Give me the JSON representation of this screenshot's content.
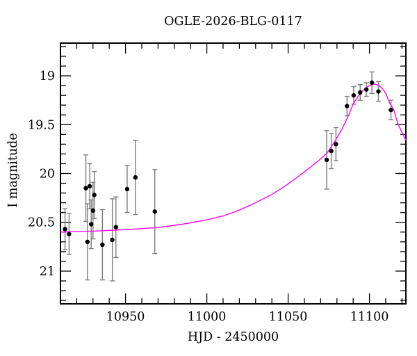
{
  "window": {
    "background": "#ffffff"
  },
  "chart_data": {
    "type": "scatter",
    "title": "OGLE-2026-BLG-0117",
    "xlabel": "HJD - 2450000",
    "ylabel": "I magnitude",
    "frame_color": "#000000",
    "background_color": "#ffffff",
    "x_axis": {
      "min": 10910,
      "max": 11122.4,
      "major_ticks": [
        10950,
        11000,
        11050,
        11100
      ],
      "major_tick_labels": [
        "10950",
        "11000",
        "11050",
        "11100"
      ],
      "minor_tick_step": 10
    },
    "y_axis": {
      "top_mag": 18.665,
      "bottom_mag": 21.335,
      "inverted": true,
      "major_ticks": [
        19,
        19.5,
        20,
        20.5,
        21
      ],
      "major_tick_labels": [
        "19",
        "19.5",
        "20",
        "20.5",
        "21"
      ],
      "minor_tick_step": 0.1
    },
    "series": [
      {
        "name": "photometry-points",
        "type": "scatter-with-errorbars",
        "color": "#000000",
        "errorbar_color": "#7b7b7b",
        "points": [
          {
            "day": 10912.8,
            "mag": 20.57,
            "err": 0.21
          },
          {
            "day": 10915.3,
            "mag": 20.62,
            "err": 0.21
          },
          {
            "day": 10925.6,
            "mag": 20.15,
            "err": 0.34
          },
          {
            "day": 10926.6,
            "mag": 20.7,
            "err": 0.39
          },
          {
            "day": 10928.0,
            "mag": 20.13,
            "err": 0.23
          },
          {
            "day": 10928.9,
            "mag": 20.52,
            "err": 0.25
          },
          {
            "day": 10930.0,
            "mag": 20.38,
            "err": 0.29
          },
          {
            "day": 10930.8,
            "mag": 20.22,
            "err": 0.24
          },
          {
            "day": 10935.8,
            "mag": 20.73,
            "err": 0.36
          },
          {
            "day": 10941.9,
            "mag": 20.68,
            "err": 0.42
          },
          {
            "day": 10944.1,
            "mag": 20.55,
            "err": 0.31
          },
          {
            "day": 10951.0,
            "mag": 20.16,
            "err": 0.24
          },
          {
            "day": 10956.1,
            "mag": 20.04,
            "err": 0.38
          },
          {
            "day": 10968.0,
            "mag": 20.39,
            "err": 0.43
          },
          {
            "day": 11073.7,
            "mag": 19.86,
            "err": 0.3
          },
          {
            "day": 11076.5,
            "mag": 19.77,
            "err": 0.18
          },
          {
            "day": 11079.4,
            "mag": 19.7,
            "err": 0.17
          },
          {
            "day": 11086.2,
            "mag": 19.31,
            "err": 0.1
          },
          {
            "day": 11090.3,
            "mag": 19.2,
            "err": 0.09
          },
          {
            "day": 11094.3,
            "mag": 19.17,
            "err": 0.08
          },
          {
            "day": 11098.1,
            "mag": 19.14,
            "err": 0.07
          },
          {
            "day": 11101.5,
            "mag": 19.07,
            "err": 0.11
          },
          {
            "day": 11105.5,
            "mag": 19.16,
            "err": 0.1
          },
          {
            "day": 11113.2,
            "mag": 19.35,
            "err": 0.1
          }
        ]
      },
      {
        "name": "model-curve",
        "type": "line",
        "color": "#ff00ff",
        "points": [
          [
            10910,
            20.6
          ],
          [
            10930,
            20.59
          ],
          [
            10950,
            20.575
          ],
          [
            10970,
            20.553
          ],
          [
            10985,
            20.52
          ],
          [
            11000,
            20.475
          ],
          [
            11010,
            20.435
          ],
          [
            11020,
            20.375
          ],
          [
            11030,
            20.3
          ],
          [
            11040,
            20.215
          ],
          [
            11048,
            20.13
          ],
          [
            11056,
            20.035
          ],
          [
            11063,
            19.945
          ],
          [
            11069,
            19.865
          ],
          [
            11074,
            19.79
          ],
          [
            11079,
            19.665
          ],
          [
            11083,
            19.55
          ],
          [
            11087,
            19.41
          ],
          [
            11090,
            19.29
          ],
          [
            11093,
            19.21
          ],
          [
            11096,
            19.15
          ],
          [
            11099,
            19.11
          ],
          [
            11101.5,
            19.09
          ],
          [
            11103.5,
            19.085
          ],
          [
            11105.5,
            19.095
          ],
          [
            11108,
            19.13
          ],
          [
            11110,
            19.18
          ],
          [
            11112.5,
            19.28
          ],
          [
            11115,
            19.35
          ],
          [
            11117.5,
            19.49
          ],
          [
            11120,
            19.58
          ],
          [
            11122.4,
            19.66
          ]
        ]
      }
    ]
  }
}
